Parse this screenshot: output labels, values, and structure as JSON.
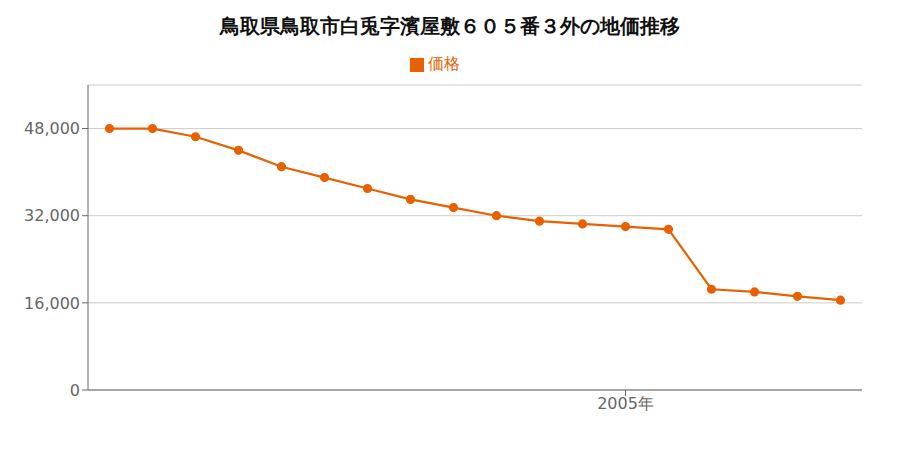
{
  "chart_data": {
    "type": "line",
    "title": "鳥取県鳥取市白兎字濱屋敷６０５番３外の地価推移",
    "x": [
      1993,
      1994,
      1995,
      1996,
      1997,
      1998,
      1999,
      2000,
      2001,
      2002,
      2003,
      2004,
      2005,
      2006,
      2007,
      2008,
      2009,
      2010
    ],
    "series": [
      {
        "name": "価格",
        "color": "#e86000",
        "marker": "circle",
        "values": [
          48000,
          48000,
          46500,
          44000,
          41000,
          39000,
          37000,
          35000,
          33500,
          32000,
          31000,
          30500,
          30000,
          29500,
          18500,
          18000,
          17200,
          16500
        ]
      }
    ],
    "xlim": [
      1992.5,
      2010.5
    ],
    "xticks": [
      {
        "value": 2005,
        "label": "2005年"
      }
    ],
    "ylim": [
      0,
      56000
    ],
    "yticks": [
      0,
      {
        "value": 16000,
        "label": "16,000"
      },
      {
        "value": 32000,
        "label": "32,000"
      },
      {
        "value": 48000,
        "label": "48,000"
      }
    ],
    "grid": true,
    "legend": "top"
  }
}
